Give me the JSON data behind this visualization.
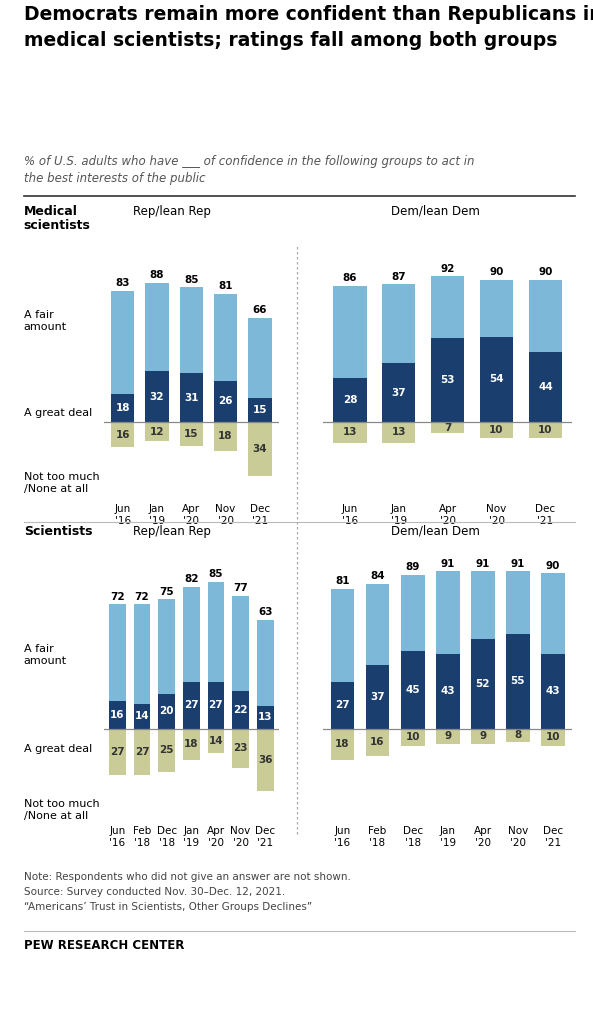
{
  "title_line1": "Democrats remain more confident than Republicans in",
  "title_line2": "medical scientists; ratings fall among both groups",
  "subtitle": "% of U.S. adults who have ___ of confidence in the following groups to act in\nthe best interests of the public",
  "note_line1": "Note: Respondents who did not give an answer are not shown.",
  "note_line2": "Source: Survey conducted Nov. 30–Dec. 12, 2021.",
  "note_line3": "“Americans’ Trust in Scientists, Other Groups Declines”",
  "credit": "PEW RESEARCH CENTER",
  "med_rep_labels": [
    "Jun\n'16",
    "Jan\n'19",
    "Apr\n'20",
    "Nov\n'20",
    "Dec\n'21"
  ],
  "med_rep_great": [
    18,
    32,
    31,
    26,
    15
  ],
  "med_rep_fair": [
    83,
    88,
    85,
    81,
    66
  ],
  "med_rep_not": [
    16,
    12,
    15,
    18,
    34
  ],
  "med_dem_labels": [
    "Jun\n'16",
    "Jan\n'19",
    "Apr\n'20",
    "Nov\n'20",
    "Dec\n'21"
  ],
  "med_dem_great": [
    28,
    37,
    53,
    54,
    44
  ],
  "med_dem_fair": [
    86,
    87,
    92,
    90,
    90
  ],
  "med_dem_not": [
    13,
    13,
    7,
    10,
    10
  ],
  "sci_rep_labels": [
    "Jun\n'16",
    "Feb\n'18",
    "Dec\n'18",
    "Jan\n'19",
    "Apr\n'20",
    "Nov\n'20",
    "Dec\n'21"
  ],
  "sci_rep_great": [
    16,
    14,
    20,
    27,
    27,
    22,
    13
  ],
  "sci_rep_fair": [
    72,
    72,
    75,
    82,
    85,
    77,
    63
  ],
  "sci_rep_not": [
    27,
    27,
    25,
    18,
    14,
    23,
    36
  ],
  "sci_dem_labels": [
    "Jun\n'16",
    "Feb\n'18",
    "Dec\n'18",
    "Jan\n'19",
    "Apr\n'20",
    "Nov\n'20",
    "Dec\n'21"
  ],
  "sci_dem_great": [
    27,
    37,
    45,
    43,
    52,
    55,
    43
  ],
  "sci_dem_fair": [
    81,
    84,
    89,
    91,
    91,
    91,
    90
  ],
  "sci_dem_not": [
    18,
    16,
    10,
    9,
    9,
    8,
    10
  ],
  "color_light_blue": "#7db8d8",
  "color_dark_blue": "#1a3f6f",
  "color_olive": "#c9cc96",
  "color_bg": "#ffffff",
  "bar_width": 0.68
}
